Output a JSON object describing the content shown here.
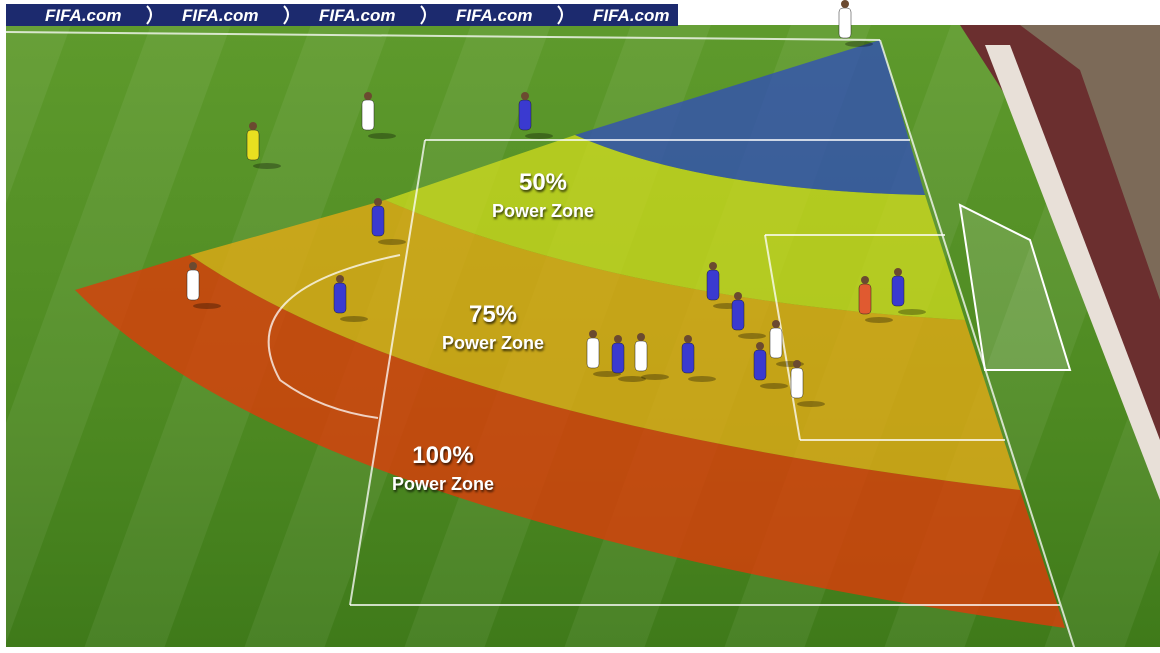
{
  "banner": {
    "items": [
      "FIFA.com",
      "FIFA.com",
      "FIFA.com",
      "FIFA.com",
      "FIFA.com"
    ]
  },
  "zones": [
    {
      "percent": "50%",
      "label": "Power Zone"
    },
    {
      "percent": "75%",
      "label": "Power Zone"
    },
    {
      "percent": "100%",
      "label": "Power Zone"
    }
  ]
}
